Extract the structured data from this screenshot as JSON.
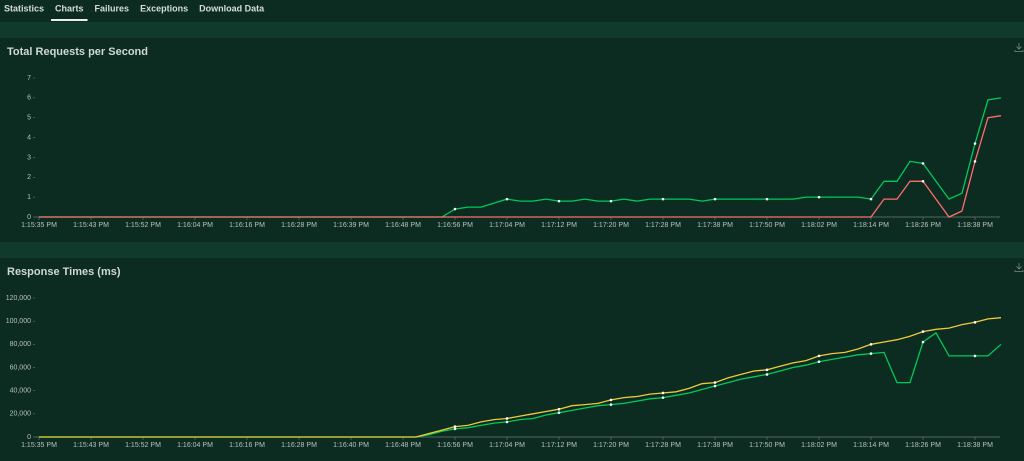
{
  "tabs": [
    "Statistics",
    "Charts",
    "Failures",
    "Exceptions",
    "Download Data"
  ],
  "active_tab": 1,
  "chart_data": [
    {
      "type": "line",
      "title": "Total Requests per Second",
      "categories": [
        "1:15:35 PM",
        null,
        null,
        null,
        "1:15:43 PM",
        null,
        null,
        null,
        "1:15:52 PM",
        null,
        null,
        null,
        "1:16:04 PM",
        null,
        null,
        null,
        "1:16:16 PM",
        null,
        null,
        null,
        "1:16:28 PM",
        null,
        null,
        null,
        "1:16:39 PM",
        null,
        null,
        null,
        "1:16:48 PM",
        null,
        null,
        null,
        "1:16:56 PM",
        null,
        null,
        null,
        "1:17:04 PM",
        null,
        null,
        null,
        "1:17:12 PM",
        null,
        null,
        null,
        "1:17:20 PM",
        null,
        null,
        null,
        "1:17:28 PM",
        null,
        null,
        null,
        "1:17:38 PM",
        null,
        null,
        null,
        "1:17:50 PM",
        null,
        null,
        null,
        "1:18:02 PM",
        null,
        null,
        null,
        "1:18:14 PM",
        null,
        null,
        null,
        "1:18:26 PM",
        null,
        null,
        null,
        "1:18:38 PM",
        null,
        null
      ],
      "ylim": [
        0,
        7
      ],
      "yticks": [
        0,
        1,
        2,
        3,
        4,
        5,
        6,
        7
      ],
      "series": [
        {
          "color": "#00ca5a",
          "values": [
            0,
            0,
            0,
            0,
            0,
            0,
            0,
            0,
            0,
            0,
            0,
            0,
            0,
            0,
            0,
            0,
            0,
            0,
            0,
            0,
            0,
            0,
            0,
            0,
            0,
            0,
            0,
            0,
            0,
            0,
            0,
            0,
            0.4,
            0.5,
            0.5,
            0.7,
            0.9,
            0.8,
            0.8,
            0.9,
            0.8,
            0.8,
            0.9,
            0.8,
            0.8,
            0.9,
            0.8,
            0.9,
            0.9,
            0.9,
            0.9,
            0.8,
            0.9,
            0.9,
            0.9,
            0.9,
            0.9,
            0.9,
            0.9,
            1.0,
            1.0,
            1.0,
            1.0,
            1.0,
            0.9,
            1.8,
            1.8,
            2.8,
            2.7,
            1.8,
            0.9,
            1.2,
            3.7,
            5.9,
            6.0
          ]
        },
        {
          "color": "#ff6d6d",
          "values": [
            0,
            0,
            0,
            0,
            0,
            0,
            0,
            0,
            0,
            0,
            0,
            0,
            0,
            0,
            0,
            0,
            0,
            0,
            0,
            0,
            0,
            0,
            0,
            0,
            0,
            0,
            0,
            0,
            0,
            0,
            0,
            0,
            0,
            0,
            0,
            0,
            0,
            0,
            0,
            0,
            0,
            0,
            0,
            0,
            0,
            0,
            0,
            0,
            0,
            0,
            0,
            0,
            0,
            0,
            0,
            0,
            0,
            0,
            0,
            0,
            0,
            0,
            0,
            0,
            0,
            0.9,
            0.9,
            1.8,
            1.8,
            0.9,
            0,
            0.3,
            2.8,
            5.0,
            5.1
          ]
        }
      ]
    },
    {
      "type": "line",
      "title": "Response Times (ms)",
      "categories": [
        "1:15:35 PM",
        null,
        null,
        null,
        "1:15:43 PM",
        null,
        null,
        null,
        "1:15:52 PM",
        null,
        null,
        null,
        "1:16:04 PM",
        null,
        null,
        null,
        "1:16:16 PM",
        null,
        null,
        null,
        "1:16:28 PM",
        null,
        null,
        null,
        "1:16:40 PM",
        null,
        null,
        null,
        "1:16:48 PM",
        null,
        null,
        null,
        "1:16:56 PM",
        null,
        null,
        null,
        "1:17:04 PM",
        null,
        null,
        null,
        "1:17:12 PM",
        null,
        null,
        null,
        "1:17:20 PM",
        null,
        null,
        null,
        "1:17:28 PM",
        null,
        null,
        null,
        "1:17:38 PM",
        null,
        null,
        null,
        "1:17:50 PM",
        null,
        null,
        null,
        "1:18:02 PM",
        null,
        null,
        null,
        "1:18:14 PM",
        null,
        null,
        null,
        "1:18:26 PM",
        null,
        null,
        null,
        "1:18:38 PM",
        null,
        null
      ],
      "ylim": [
        0,
        120000
      ],
      "yticks": [
        0,
        {
          "value": 20000,
          "label": "20,000"
        },
        {
          "value": 40000,
          "label": "40,000"
        },
        {
          "value": 60000,
          "label": "60,000"
        },
        {
          "value": 80000,
          "label": "80,000"
        },
        {
          "value": 100000,
          "label": "100,000"
        },
        {
          "value": 120000,
          "label": "120,000"
        }
      ],
      "series": [
        {
          "color": "#00ca5a",
          "values": [
            0,
            0,
            0,
            0,
            0,
            0,
            0,
            0,
            0,
            0,
            0,
            0,
            0,
            0,
            0,
            0,
            0,
            0,
            0,
            0,
            0,
            0,
            0,
            0,
            0,
            0,
            0,
            0,
            0,
            0,
            2000,
            5000,
            7000,
            8000,
            10000,
            12000,
            13000,
            15000,
            16000,
            19000,
            21000,
            23000,
            25000,
            27000,
            28000,
            29000,
            31000,
            33000,
            34000,
            36000,
            38000,
            41000,
            44000,
            47000,
            50000,
            52000,
            54000,
            57000,
            60000,
            62000,
            65000,
            67000,
            69000,
            71000,
            72000,
            73000,
            47000,
            47000,
            82000,
            90000,
            70000,
            70000,
            70000,
            70000,
            80000
          ]
        },
        {
          "color": "#eeca3b",
          "values": [
            0,
            0,
            0,
            0,
            0,
            0,
            0,
            0,
            0,
            0,
            0,
            0,
            0,
            0,
            0,
            0,
            0,
            0,
            0,
            0,
            0,
            0,
            0,
            0,
            0,
            0,
            0,
            0,
            0,
            0,
            3000,
            6000,
            9000,
            10000,
            13000,
            15000,
            16000,
            18000,
            20000,
            22000,
            24000,
            27000,
            28000,
            29000,
            32000,
            34000,
            35000,
            37000,
            38000,
            39000,
            42000,
            46000,
            47000,
            51000,
            54000,
            57000,
            58000,
            61000,
            64000,
            66000,
            70000,
            72000,
            73000,
            76000,
            80000,
            82000,
            84000,
            87000,
            91000,
            93000,
            94000,
            97000,
            99000,
            102000,
            103000
          ]
        }
      ]
    }
  ]
}
